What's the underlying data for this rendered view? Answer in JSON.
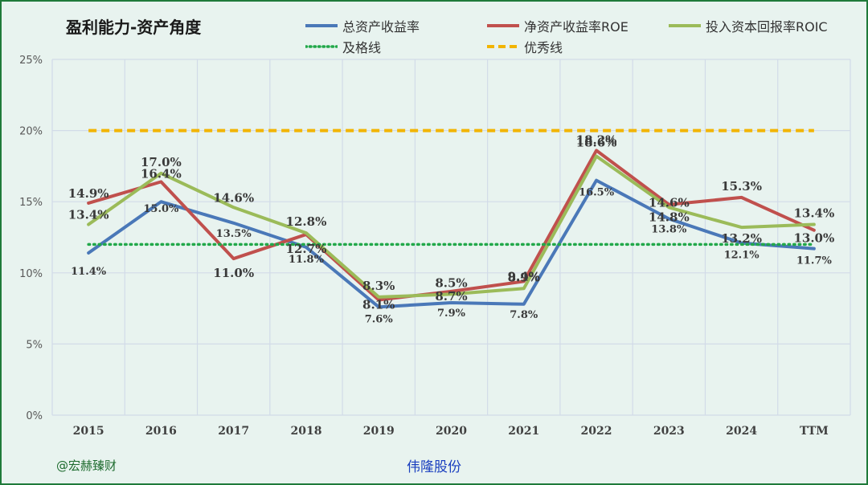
{
  "title": "盈利能力-资产角度",
  "watermark": "@宏赫臻财",
  "company": "伟隆股份",
  "legend": {
    "roa": "总资产收益率",
    "roe": "净资产收益率ROE",
    "roic": "投入资本回报率ROIC",
    "pass": "及格线",
    "excellent": "优秀线"
  },
  "chart_data": {
    "type": "line",
    "categories": [
      "2015",
      "2016",
      "2017",
      "2018",
      "2019",
      "2020",
      "2021",
      "2022",
      "2023",
      "2024",
      "TTM"
    ],
    "ylim": [
      0,
      25
    ],
    "yticks": [
      "0%",
      "5%",
      "10%",
      "15%",
      "20%",
      "25%"
    ],
    "grid": true,
    "legend_position": "top",
    "series": [
      {
        "name": "总资产收益率",
        "color": "#4a78b8",
        "style": "solid",
        "values": [
          11.4,
          15.0,
          13.5,
          11.8,
          7.6,
          7.9,
          7.8,
          16.5,
          13.8,
          12.1,
          11.7
        ],
        "labels": [
          "11.4%",
          "15.0%",
          "13.5%",
          "11.8%",
          "7.6%",
          "7.9%",
          "7.8%",
          "16.5%",
          "13.8%",
          "12.1%",
          "11.7%"
        ]
      },
      {
        "name": "净资产收益率ROE",
        "color": "#c0504d",
        "style": "solid",
        "values": [
          14.9,
          16.4,
          11.0,
          12.7,
          8.1,
          8.7,
          9.4,
          18.6,
          14.8,
          15.3,
          13.0
        ],
        "labels": [
          "14.9%",
          "16.4%",
          "11.0%",
          "12.7%",
          "8.1%",
          "8.7%",
          "9.4%",
          "18.6%",
          "14.8%",
          "15.3%",
          "13.0%"
        ]
      },
      {
        "name": "投入资本回报率ROIC",
        "color": "#9bbb59",
        "style": "solid",
        "values": [
          13.4,
          17.0,
          14.6,
          12.8,
          8.3,
          8.5,
          8.9,
          18.2,
          14.6,
          13.2,
          13.4
        ],
        "labels": [
          "13.4%",
          "17.0%",
          "14.6%",
          "12.8%",
          "8.3%",
          "8.5%",
          "8.9%",
          "18.2%",
          "14.6%",
          "13.2%",
          "13.4%"
        ]
      },
      {
        "name": "及格线",
        "color": "#22a84a",
        "style": "dotted",
        "values": [
          12,
          12,
          12,
          12,
          12,
          12,
          12,
          12,
          12,
          12,
          12
        ]
      },
      {
        "name": "优秀线",
        "color": "#f2b400",
        "style": "dashed",
        "values": [
          20,
          20,
          20,
          20,
          20,
          20,
          20,
          20,
          20,
          20,
          20
        ]
      }
    ]
  }
}
